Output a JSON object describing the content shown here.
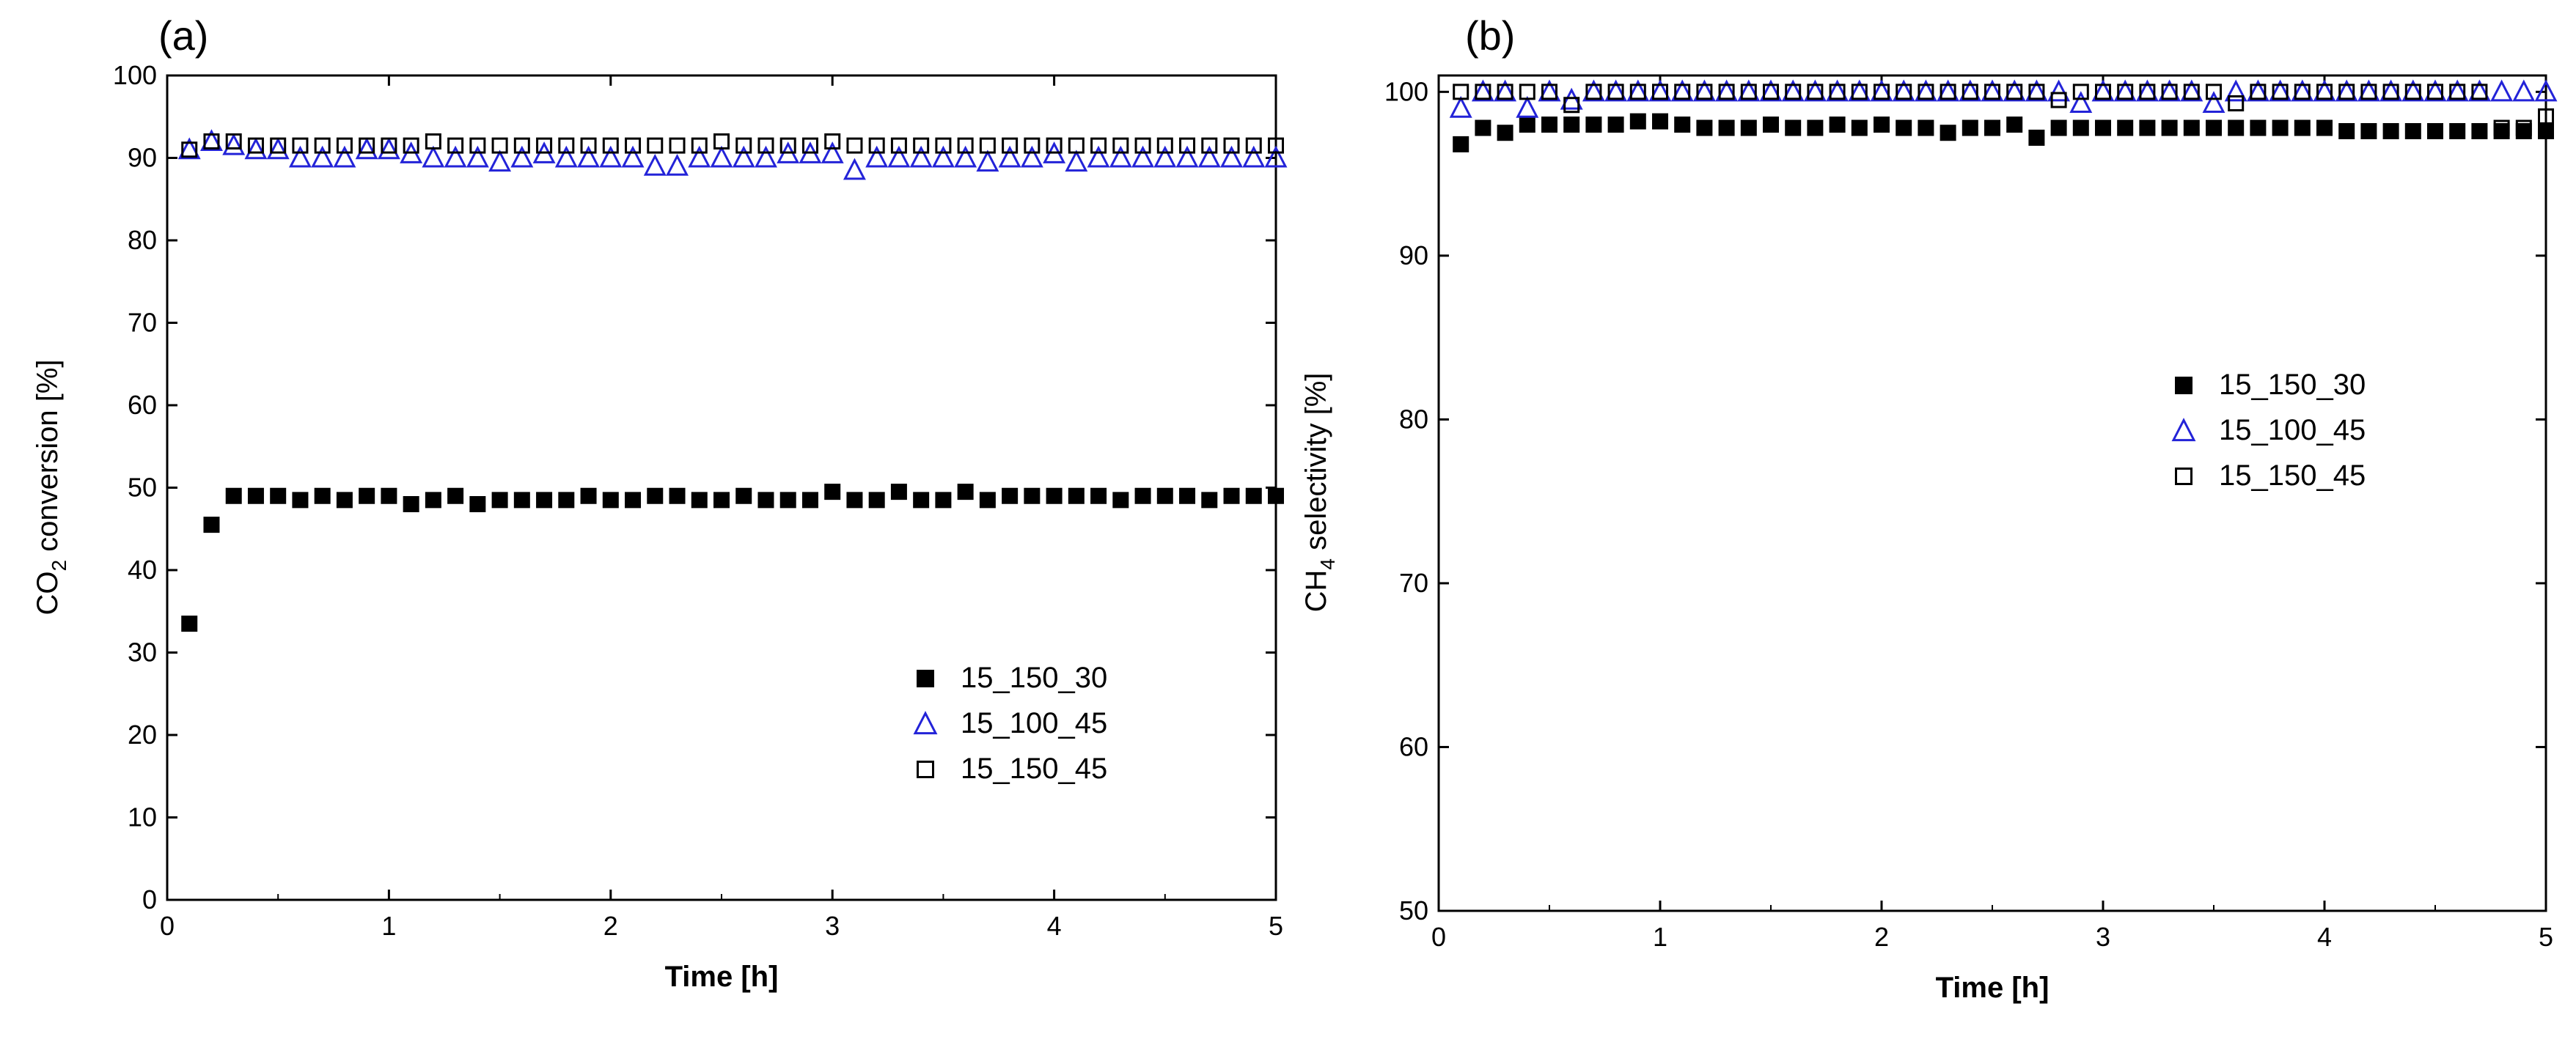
{
  "chart_data": [
    {
      "type": "scatter",
      "panel_label": "(a)",
      "title": "",
      "xlabel": "Time [h]",
      "ylabel_parts": [
        "CO",
        "2",
        " conversion [%]"
      ],
      "xlim": [
        0,
        5
      ],
      "ylim": [
        0,
        100
      ],
      "xticks": [
        0,
        1,
        2,
        3,
        4,
        5
      ],
      "yticks": [
        0,
        10,
        20,
        30,
        40,
        50,
        60,
        70,
        80,
        90,
        100
      ],
      "grid": false,
      "legend_position": "lower-right",
      "x": [
        0.1,
        0.2,
        0.3,
        0.4,
        0.5,
        0.6,
        0.7,
        0.8,
        0.9,
        1.0,
        1.1,
        1.2,
        1.3,
        1.4,
        1.5,
        1.6,
        1.7,
        1.8,
        1.9,
        2.0,
        2.1,
        2.2,
        2.3,
        2.4,
        2.5,
        2.6,
        2.7,
        2.8,
        2.9,
        3.0,
        3.1,
        3.2,
        3.3,
        3.4,
        3.5,
        3.6,
        3.7,
        3.8,
        3.9,
        4.0,
        4.1,
        4.2,
        4.3,
        4.4,
        4.5,
        4.6,
        4.7,
        4.8,
        4.9,
        5.0
      ],
      "series": [
        {
          "name": "15_150_30",
          "marker": "filled-square",
          "color": "#000000",
          "values": [
            33.5,
            45.5,
            49,
            49,
            49,
            48.5,
            49,
            48.5,
            49,
            49,
            48,
            48.5,
            49,
            48,
            48.5,
            48.5,
            48.5,
            48.5,
            49,
            48.5,
            48.5,
            49,
            49,
            48.5,
            48.5,
            49,
            48.5,
            48.5,
            48.5,
            49.5,
            48.5,
            48.5,
            49.5,
            48.5,
            48.5,
            49.5,
            48.5,
            49,
            49,
            49,
            49,
            49,
            48.5,
            49,
            49,
            49,
            48.5,
            49,
            49,
            49
          ]
        },
        {
          "name": "15_100_45",
          "marker": "open-triangle",
          "color": "#2323d8",
          "values": [
            91,
            92,
            91.5,
            91,
            91,
            90,
            90,
            90,
            91,
            91,
            90.5,
            90,
            90,
            90,
            89.5,
            90,
            90.5,
            90,
            90,
            90,
            90,
            89,
            89,
            90,
            90,
            90,
            90,
            90.5,
            90.5,
            90.5,
            88.5,
            90,
            90,
            90,
            90,
            90,
            89.5,
            90,
            90,
            90.5,
            89.5,
            90,
            90,
            90,
            90,
            90,
            90,
            90,
            90,
            90
          ]
        },
        {
          "name": "15_150_45",
          "marker": "open-square",
          "color": "#000000",
          "values": [
            91,
            92,
            92,
            91.5,
            91.5,
            91.5,
            91.5,
            91.5,
            91.5,
            91.5,
            91.5,
            92,
            91.5,
            91.5,
            91.5,
            91.5,
            91.5,
            91.5,
            91.5,
            91.5,
            91.5,
            91.5,
            91.5,
            91.5,
            92,
            91.5,
            91.5,
            91.5,
            91.5,
            92,
            91.5,
            91.5,
            91.5,
            91.5,
            91.5,
            91.5,
            91.5,
            91.5,
            91.5,
            91.5,
            91.5,
            91.5,
            91.5,
            91.5,
            91.5,
            91.5,
            91.5,
            91.5,
            91.5,
            91.5
          ]
        }
      ]
    },
    {
      "type": "scatter",
      "panel_label": "(b)",
      "title": "",
      "xlabel": "Time [h]",
      "ylabel_parts": [
        "CH",
        "4",
        " selectivity [%]"
      ],
      "xlim": [
        0,
        5
      ],
      "ylim": [
        50,
        101
      ],
      "xticks": [
        0,
        1,
        2,
        3,
        4,
        5
      ],
      "yticks": [
        50,
        60,
        70,
        80,
        90,
        100
      ],
      "grid": false,
      "legend_position": "center-right",
      "x": [
        0.1,
        0.2,
        0.3,
        0.4,
        0.5,
        0.6,
        0.7,
        0.8,
        0.9,
        1.0,
        1.1,
        1.2,
        1.3,
        1.4,
        1.5,
        1.6,
        1.7,
        1.8,
        1.9,
        2.0,
        2.1,
        2.2,
        2.3,
        2.4,
        2.5,
        2.6,
        2.7,
        2.8,
        2.9,
        3.0,
        3.1,
        3.2,
        3.3,
        3.4,
        3.5,
        3.6,
        3.7,
        3.8,
        3.9,
        4.0,
        4.1,
        4.2,
        4.3,
        4.4,
        4.5,
        4.6,
        4.7,
        4.8,
        4.9,
        5.0
      ],
      "series": [
        {
          "name": "15_150_30",
          "marker": "filled-square",
          "color": "#000000",
          "values": [
            96.8,
            97.8,
            97.5,
            98,
            98,
            98,
            98,
            98,
            98.2,
            98.2,
            98,
            97.8,
            97.8,
            97.8,
            98,
            97.8,
            97.8,
            98,
            97.8,
            98,
            97.8,
            97.8,
            97.5,
            97.8,
            97.8,
            98,
            97.2,
            97.8,
            97.8,
            97.8,
            97.8,
            97.8,
            97.8,
            97.8,
            97.8,
            97.8,
            97.8,
            97.8,
            97.8,
            97.8,
            97.6,
            97.6,
            97.6,
            97.6,
            97.6,
            97.6,
            97.6,
            97.6,
            97.6,
            97.6
          ]
        },
        {
          "name": "15_100_45",
          "marker": "open-triangle",
          "color": "#2323d8",
          "values": [
            99,
            100,
            100,
            99,
            100,
            99.5,
            100,
            100,
            100,
            100,
            100,
            100,
            100,
            100,
            100,
            100,
            100,
            100,
            100,
            100,
            100,
            100,
            100,
            100,
            100,
            100,
            100,
            100,
            99.3,
            100,
            100,
            100,
            100,
            100,
            99.3,
            100,
            100,
            100,
            100,
            100,
            100,
            100,
            100,
            100,
            100,
            100,
            100,
            100,
            100,
            100
          ]
        },
        {
          "name": "15_150_45",
          "marker": "open-square",
          "color": "#000000",
          "values": [
            100,
            100,
            100,
            100,
            100,
            99.2,
            100,
            100,
            100,
            100,
            100,
            100,
            100,
            100,
            100,
            100,
            100,
            100,
            100,
            100,
            100,
            100,
            100,
            100,
            100,
            100,
            100,
            99.5,
            100,
            100,
            100,
            100,
            100,
            100,
            100,
            99.3,
            100,
            100,
            100,
            100,
            100,
            100,
            100,
            100,
            100,
            100,
            100,
            97.8,
            97.8,
            98.5
          ]
        }
      ]
    }
  ]
}
